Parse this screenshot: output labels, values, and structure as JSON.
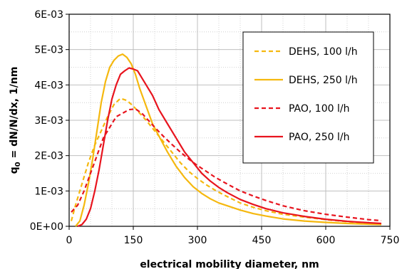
{
  "chart_data": {
    "type": "line",
    "xlabel": "electrical mobility diameter, nm",
    "ylabel": "q",
    "ylabel_sub": "0",
    "ylabel_rest": " = dN/N/dx, 1/nm",
    "xlim": [
      0,
      750
    ],
    "ylim": [
      0,
      0.006
    ],
    "x_ticks": [
      0,
      150,
      300,
      450,
      600,
      750
    ],
    "x_tick_labels": [
      "0",
      "150",
      "300",
      "450",
      "600",
      "750"
    ],
    "y_ticks": [
      0,
      0.001,
      0.002,
      0.003,
      0.004,
      0.005,
      0.006
    ],
    "y_tick_labels": [
      "0E+00",
      "1E-03",
      "2E-03",
      "3E-03",
      "4E-03",
      "5E-03",
      "6E-03"
    ],
    "grid": true,
    "legend_position": "top-right",
    "series": [
      {
        "name": "DEHS, 100 l/h",
        "color": "#f5b80f",
        "dash": "dashed",
        "points": [
          [
            5,
            0.00015
          ],
          [
            15,
            0.0006
          ],
          [
            30,
            0.0012
          ],
          [
            45,
            0.0018
          ],
          [
            60,
            0.0023
          ],
          [
            75,
            0.0027
          ],
          [
            90,
            0.0031
          ],
          [
            105,
            0.00345
          ],
          [
            120,
            0.00362
          ],
          [
            135,
            0.00356
          ],
          [
            150,
            0.0034
          ],
          [
            165,
            0.0032
          ],
          [
            180,
            0.003
          ],
          [
            200,
            0.0027
          ],
          [
            220,
            0.0024
          ],
          [
            240,
            0.0021
          ],
          [
            260,
            0.0018
          ],
          [
            280,
            0.00155
          ],
          [
            300,
            0.00135
          ],
          [
            320,
            0.00118
          ],
          [
            340,
            0.00103
          ],
          [
            360,
            0.0009
          ],
          [
            380,
            0.00078
          ],
          [
            400,
            0.00066
          ],
          [
            430,
            0.00054
          ],
          [
            460,
            0.00044
          ],
          [
            500,
            0.00034
          ],
          [
            550,
            0.00026
          ],
          [
            600,
            0.00019
          ],
          [
            650,
            0.00013
          ],
          [
            700,
            9e-05
          ],
          [
            730,
            7e-05
          ]
        ]
      },
      {
        "name": "DEHS, 250 l/h",
        "color": "#f5b80f",
        "dash": "solid",
        "points": [
          [
            15,
            0.0
          ],
          [
            25,
            0.00015
          ],
          [
            35,
            0.0006
          ],
          [
            45,
            0.0012
          ],
          [
            55,
            0.0019
          ],
          [
            65,
            0.0027
          ],
          [
            75,
            0.0035
          ],
          [
            85,
            0.0041
          ],
          [
            95,
            0.0045
          ],
          [
            105,
            0.0047
          ],
          [
            115,
            0.00482
          ],
          [
            125,
            0.00487
          ],
          [
            135,
            0.00478
          ],
          [
            145,
            0.0046
          ],
          [
            155,
            0.0043
          ],
          [
            165,
            0.0039
          ],
          [
            180,
            0.0034
          ],
          [
            195,
            0.0029
          ],
          [
            210,
            0.00255
          ],
          [
            230,
            0.0021
          ],
          [
            250,
            0.0017
          ],
          [
            270,
            0.00138
          ],
          [
            290,
            0.00112
          ],
          [
            310,
            0.00093
          ],
          [
            330,
            0.00078
          ],
          [
            350,
            0.00066
          ],
          [
            370,
            0.00058
          ],
          [
            400,
            0.00046
          ],
          [
            430,
            0.00036
          ],
          [
            460,
            0.00029
          ],
          [
            500,
            0.00021
          ],
          [
            550,
            0.00015
          ],
          [
            600,
            0.00011
          ],
          [
            650,
            8e-05
          ],
          [
            700,
            6e-05
          ],
          [
            730,
            5e-05
          ]
        ]
      },
      {
        "name": "PAO, 100 l/h",
        "color": "#e8141e",
        "dash": "dashed",
        "points": [
          [
            5,
            0.0004
          ],
          [
            20,
            0.0006
          ],
          [
            35,
            0.001
          ],
          [
            50,
            0.0015
          ],
          [
            65,
            0.002
          ],
          [
            80,
            0.0025
          ],
          [
            95,
            0.0028
          ],
          [
            110,
            0.0031
          ],
          [
            125,
            0.0032
          ],
          [
            140,
            0.0033
          ],
          [
            155,
            0.00332
          ],
          [
            170,
            0.0032
          ],
          [
            185,
            0.003
          ],
          [
            200,
            0.0028
          ],
          [
            220,
            0.00255
          ],
          [
            240,
            0.00232
          ],
          [
            260,
            0.0021
          ],
          [
            280,
            0.0019
          ],
          [
            300,
            0.00172
          ],
          [
            320,
            0.00156
          ],
          [
            340,
            0.0014
          ],
          [
            360,
            0.00126
          ],
          [
            380,
            0.00113
          ],
          [
            400,
            0.001
          ],
          [
            430,
            0.00086
          ],
          [
            460,
            0.00073
          ],
          [
            500,
            0.00058
          ],
          [
            550,
            0.00044
          ],
          [
            600,
            0.00034
          ],
          [
            650,
            0.00026
          ],
          [
            700,
            0.00019
          ],
          [
            730,
            0.00016
          ]
        ]
      },
      {
        "name": "PAO, 250 l/h",
        "color": "#e8141e",
        "dash": "solid",
        "points": [
          [
            20,
            0.0
          ],
          [
            30,
            5e-05
          ],
          [
            40,
            0.0002
          ],
          [
            50,
            0.0005
          ],
          [
            60,
            0.001
          ],
          [
            70,
            0.0016
          ],
          [
            80,
            0.0023
          ],
          [
            90,
            0.003
          ],
          [
            100,
            0.0036
          ],
          [
            110,
            0.004
          ],
          [
            120,
            0.0043
          ],
          [
            130,
            0.0044
          ],
          [
            140,
            0.00448
          ],
          [
            150,
            0.00445
          ],
          [
            160,
            0.0044
          ],
          [
            170,
            0.0042
          ],
          [
            180,
            0.004
          ],
          [
            195,
            0.0037
          ],
          [
            210,
            0.0033
          ],
          [
            230,
            0.0029
          ],
          [
            250,
            0.0025
          ],
          [
            270,
            0.0021
          ],
          [
            290,
            0.0018
          ],
          [
            310,
            0.0015
          ],
          [
            330,
            0.00128
          ],
          [
            350,
            0.0011
          ],
          [
            370,
            0.00095
          ],
          [
            400,
            0.00076
          ],
          [
            430,
            0.00062
          ],
          [
            460,
            0.0005
          ],
          [
            500,
            0.00038
          ],
          [
            550,
            0.00028
          ],
          [
            600,
            0.0002
          ],
          [
            650,
            0.00014
          ],
          [
            700,
            0.0001
          ],
          [
            730,
            8e-05
          ]
        ]
      }
    ]
  }
}
